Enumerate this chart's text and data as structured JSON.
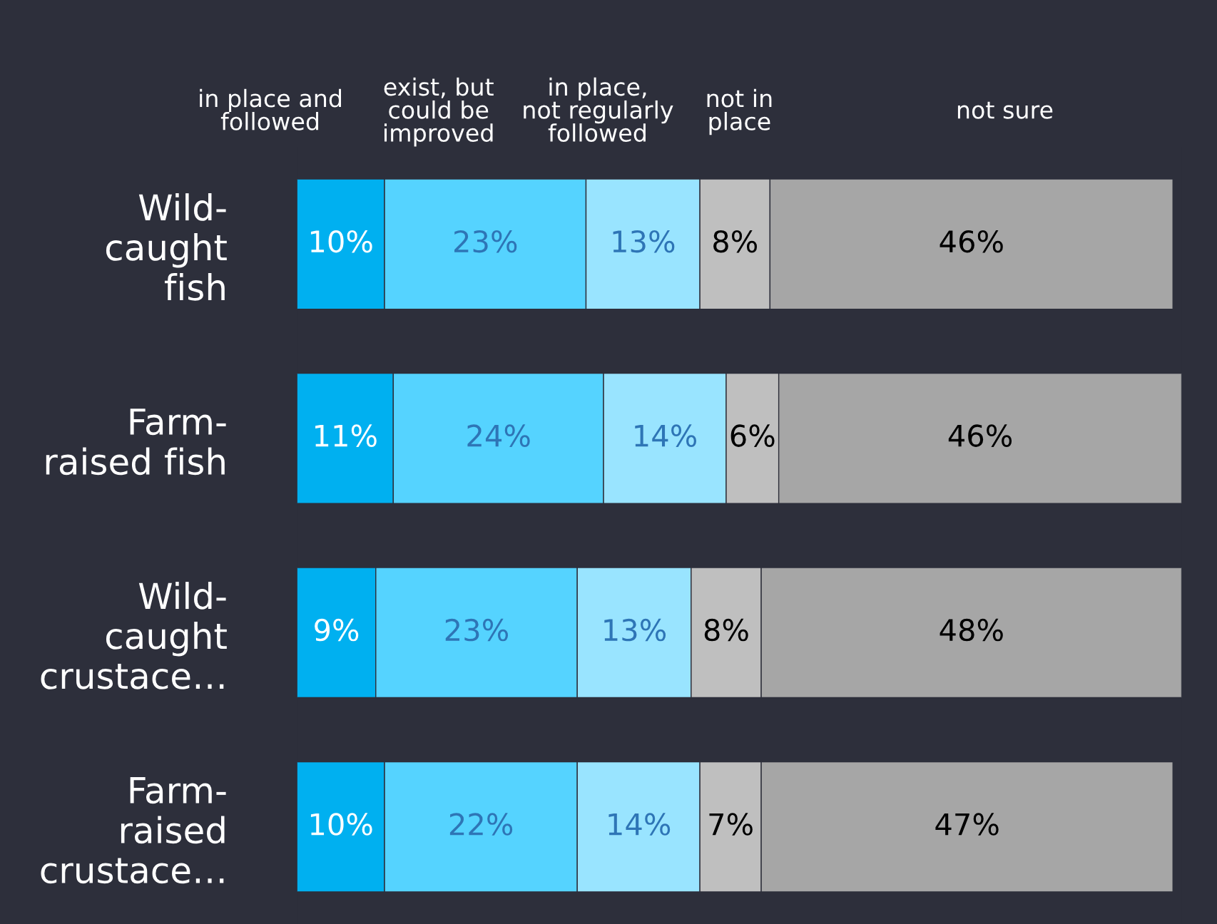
{
  "chart_data": {
    "type": "bar",
    "orientation": "horizontal",
    "stacked": true,
    "legend": "top",
    "categories": [
      "Wild-\ncaught\nfish",
      "Farm-\nraised fish",
      "Wild-\ncaught\ncrustace…",
      "Farm-\nraised\ncrustace…"
    ],
    "series": [
      {
        "name": "in place and\nfollowed",
        "color": "#00b0f0",
        "values": [
          10,
          11,
          9,
          10
        ],
        "value_labels": [
          "10%",
          "11%",
          "9%",
          "10%"
        ]
      },
      {
        "name": "exist, but\ncould be\nimproved",
        "color": "#55d3ff",
        "values": [
          23,
          24,
          23,
          22
        ],
        "value_labels": [
          "23%",
          "24%",
          "23%",
          "22%"
        ]
      },
      {
        "name": "in place,\nnot regularly\nfollowed",
        "color": "#99e4ff",
        "values": [
          13,
          14,
          13,
          14
        ],
        "value_labels": [
          "13%",
          "14%",
          "13%",
          "14%"
        ]
      },
      {
        "name": "not in\nplace",
        "color": "#bfbfbf",
        "values": [
          8,
          6,
          8,
          7
        ],
        "value_labels": [
          "8%",
          "6%",
          "8%",
          "7%"
        ]
      },
      {
        "name": "not sure",
        "color": "#a6a6a6",
        "values": [
          46,
          46,
          48,
          47
        ],
        "value_labels": [
          "46%",
          "46%",
          "48%",
          "47%"
        ]
      }
    ]
  }
}
